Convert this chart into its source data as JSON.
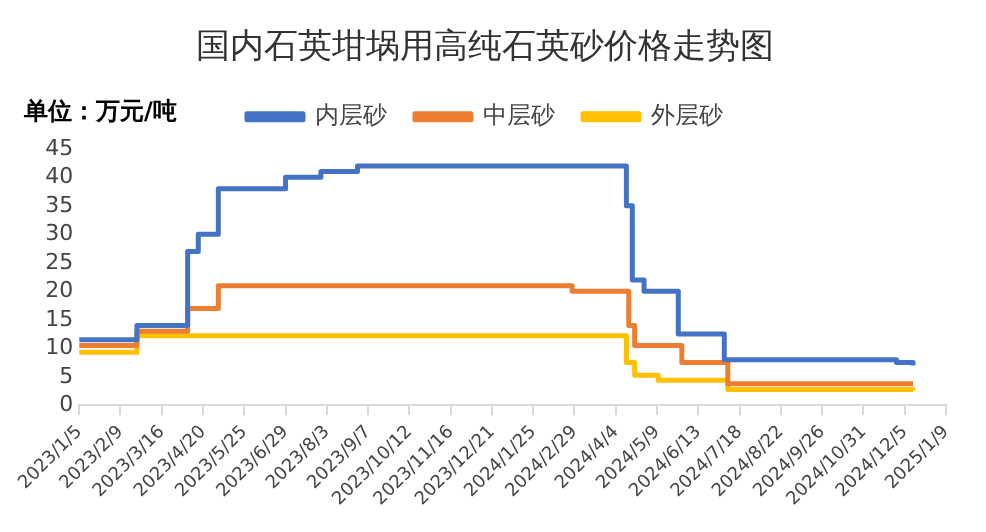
{
  "chart_data": {
    "type": "step",
    "title": "国内石英坩埚用高纯石英砂价格走势图",
    "ylabel": "单位：万元/吨",
    "series": [
      {
        "name": "内层砂",
        "color": "#4472c4",
        "x": [
          "2023-01-05",
          "2023-02-23",
          "2023-04-07",
          "2023-04-16",
          "2023-05-03",
          "2023-06-29",
          "2023-07-29",
          "2023-08-29",
          "2024-04-13",
          "2024-04-18",
          "2024-04-28",
          "2024-05-27",
          "2024-07-05",
          "2024-11-28",
          "2024-12-12"
        ],
        "values": [
          11.5,
          14,
          27,
          30,
          38,
          40,
          41,
          42,
          35,
          22,
          20,
          12.5,
          8,
          7.5,
          7
        ]
      },
      {
        "name": "中层砂",
        "color": "#ed7d31",
        "x": [
          "2023-01-05",
          "2023-02-23",
          "2023-04-07",
          "2023-05-03",
          "2024-02-27",
          "2024-04-15",
          "2024-04-20",
          "2024-05-30",
          "2024-07-08",
          "2024-12-12"
        ],
        "values": [
          10.5,
          13,
          17,
          21,
          20,
          14,
          10.5,
          7.5,
          3.8,
          3.8
        ]
      },
      {
        "name": "外层砂",
        "color": "#ffc000",
        "x": [
          "2023-01-05",
          "2023-02-23",
          "2024-04-13",
          "2024-04-20",
          "2024-05-10",
          "2024-07-08",
          "2024-12-12"
        ],
        "values": [
          9.3,
          12.2,
          7.5,
          5.3,
          4.4,
          2.8,
          2.6
        ]
      }
    ],
    "xlim": [
      "2023-01-05",
      "2025-01-09"
    ],
    "xticks": [
      {
        "value": "2023-01-05",
        "label": "2023/1/5"
      },
      {
        "value": "2023-02-09",
        "label": "2023/2/9"
      },
      {
        "value": "2023-03-16",
        "label": "2023/3/16"
      },
      {
        "value": "2023-04-20",
        "label": "2023/4/20"
      },
      {
        "value": "2023-05-25",
        "label": "2023/5/25"
      },
      {
        "value": "2023-06-29",
        "label": "2023/6/29"
      },
      {
        "value": "2023-08-03",
        "label": "2023/8/3"
      },
      {
        "value": "2023-09-07",
        "label": "2023/9/7"
      },
      {
        "value": "2023-10-12",
        "label": "2023/10/12"
      },
      {
        "value": "2023-11-16",
        "label": "2023/11/16"
      },
      {
        "value": "2023-12-21",
        "label": "2023/12/21"
      },
      {
        "value": "2024-01-25",
        "label": "2024/1/25"
      },
      {
        "value": "2024-02-29",
        "label": "2024/2/29"
      },
      {
        "value": "2024-04-04",
        "label": "2024/4/4"
      },
      {
        "value": "2024-05-09",
        "label": "2024/5/9"
      },
      {
        "value": "2024-06-13",
        "label": "2024/6/13"
      },
      {
        "value": "2024-07-18",
        "label": "2024/7/18"
      },
      {
        "value": "2024-08-22",
        "label": "2024/8/22"
      },
      {
        "value": "2024-09-26",
        "label": "2024/9/26"
      },
      {
        "value": "2024-10-31",
        "label": "2024/10/31"
      },
      {
        "value": "2024-12-05",
        "label": "2024/12/5"
      },
      {
        "value": "2025-01-09",
        "label": "2025/1/9"
      }
    ],
    "ylim": [
      0,
      45
    ],
    "yticks": [
      0,
      5,
      10,
      15,
      20,
      25,
      30,
      35,
      40,
      45
    ],
    "grid": false,
    "legend": "top"
  }
}
